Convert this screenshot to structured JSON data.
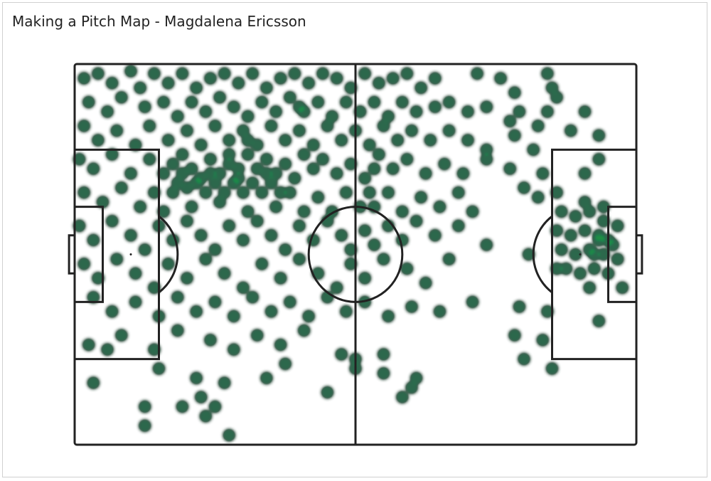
{
  "chart_data": {
    "type": "scatter",
    "title": "Making a Pitch Map - Magdalena Ericsson",
    "xlim": [
      0,
      120
    ],
    "ylim": [
      0,
      80
    ],
    "x": [
      2,
      5,
      8,
      12,
      14,
      17,
      20,
      23,
      26,
      29,
      32,
      35,
      38,
      41,
      44,
      47,
      50,
      53,
      56,
      59,
      62,
      65,
      68,
      71,
      74,
      77,
      86,
      91,
      94,
      101,
      102,
      103,
      3,
      7,
      10,
      15,
      19,
      22,
      25,
      28,
      31,
      34,
      37,
      40,
      43,
      46,
      49,
      52,
      55,
      58,
      61,
      64,
      67,
      70,
      73,
      77,
      80,
      84,
      88,
      95,
      101,
      2,
      5,
      9,
      13,
      16,
      20,
      24,
      27,
      30,
      33,
      36,
      39,
      42,
      45,
      48,
      51,
      54,
      57,
      60,
      63,
      66,
      69,
      72,
      76,
      80,
      84,
      88,
      93,
      94,
      99,
      106,
      109,
      112,
      1,
      4,
      8,
      12,
      16,
      19,
      21,
      23,
      25,
      27,
      29,
      31,
      33,
      35,
      37,
      39,
      41,
      43,
      45,
      47,
      49,
      51,
      53,
      56,
      59,
      62,
      65,
      68,
      71,
      75,
      79,
      83,
      88,
      93,
      98,
      100,
      109,
      112,
      22,
      21,
      24,
      26,
      28,
      30,
      32,
      34,
      36,
      38,
      40,
      42,
      44,
      23,
      29,
      35,
      41,
      33,
      37,
      48,
      64,
      63,
      2,
      6,
      10,
      14,
      17,
      19,
      25,
      31,
      37,
      43,
      46,
      49,
      52,
      55,
      58,
      61,
      64,
      67,
      70,
      74,
      78,
      82,
      85,
      96,
      99,
      103,
      109,
      113,
      1,
      4,
      8,
      12,
      15,
      18,
      21,
      24,
      27,
      30,
      33,
      36,
      39,
      42,
      45,
      48,
      51,
      54,
      57,
      59,
      62,
      64,
      67,
      70,
      73,
      77,
      82,
      88,
      97,
      104,
      107,
      110,
      113,
      116,
      103,
      106,
      109,
      112,
      115,
      104,
      107,
      110,
      113,
      116,
      105,
      108,
      111,
      114,
      110,
      112,
      111,
      114,
      2,
      5,
      9,
      13,
      17,
      20,
      24,
      28,
      32,
      36,
      40,
      44,
      48,
      52,
      56,
      59,
      62,
      66,
      71,
      75,
      80,
      103,
      117,
      4,
      8,
      13,
      18,
      22,
      26,
      30,
      34,
      38,
      42,
      46,
      50,
      54,
      58,
      62,
      67,
      72,
      78,
      85,
      95,
      101,
      112,
      3,
      7,
      10,
      17,
      22,
      29,
      34,
      39,
      44,
      49,
      57,
      60,
      66,
      73,
      66,
      94,
      96,
      100,
      102,
      4,
      18,
      26,
      27,
      32,
      30,
      15,
      15,
      23,
      28,
      33,
      41,
      54,
      70,
      72,
      60,
      45
    ],
    "y": [
      3,
      2,
      4,
      1.5,
      5,
      2,
      4,
      2,
      5,
      3,
      2,
      4,
      2,
      5,
      3,
      2,
      4,
      2,
      3,
      5,
      2,
      4,
      3,
      2,
      5,
      3,
      2,
      3,
      6,
      2,
      5,
      7,
      8,
      10,
      7,
      9,
      8,
      11,
      8,
      10,
      7,
      9,
      11,
      8,
      10,
      7,
      10,
      8,
      11,
      8,
      10,
      8,
      11,
      8,
      10,
      9,
      8,
      10,
      9,
      10,
      10,
      13,
      16,
      14,
      17,
      13,
      16,
      14,
      17,
      13,
      16,
      14,
      17,
      13,
      16,
      14,
      17,
      13,
      16,
      14,
      17,
      13,
      16,
      14,
      16,
      14,
      16,
      18,
      12,
      15,
      13,
      14,
      10,
      15,
      20,
      22,
      19,
      23,
      20,
      23,
      21,
      19,
      22,
      24,
      20,
      23,
      21,
      24,
      19,
      22,
      20,
      23,
      21,
      24,
      19,
      22,
      20,
      23,
      21,
      24,
      19,
      22,
      20,
      23,
      21,
      23,
      20,
      22,
      18,
      23,
      23,
      20,
      25,
      27,
      26,
      25,
      27,
      25,
      27,
      25,
      27,
      25,
      27,
      25,
      27,
      23,
      23,
      22,
      23,
      19,
      16,
      9,
      22,
      27,
      27,
      29,
      26,
      30,
      27,
      31,
      30,
      29,
      31,
      30,
      27,
      31,
      28,
      31,
      27,
      30,
      30,
      27,
      31,
      28,
      30,
      27,
      31,
      26,
      28,
      27,
      29,
      30,
      34,
      37,
      33,
      36,
      39,
      34,
      37,
      33,
      36,
      39,
      34,
      37,
      33,
      36,
      39,
      34,
      37,
      33,
      36,
      39,
      35,
      38,
      34,
      37,
      33,
      36,
      34,
      38,
      40,
      31,
      32,
      31,
      33,
      34,
      35,
      36,
      35,
      37,
      38,
      39,
      40,
      39,
      40,
      41,
      43,
      44,
      43,
      44,
      47,
      36,
      40,
      37,
      42,
      45,
      41,
      44,
      47,
      42,
      45,
      41,
      44,
      47,
      42,
      45,
      41,
      44,
      47,
      42,
      45,
      41,
      43,
      46,
      41,
      43,
      47,
      49,
      52,
      50,
      53,
      49,
      52,
      50,
      53,
      49,
      52,
      50,
      53,
      49,
      52,
      50,
      53,
      51,
      52,
      50,
      51,
      52,
      54,
      59,
      60,
      57,
      60,
      56,
      58,
      60,
      57,
      59,
      56,
      61,
      62,
      61,
      66,
      65,
      57,
      62,
      58,
      64,
      67,
      64,
      66,
      70,
      67,
      72,
      72,
      76,
      72,
      74,
      78,
      66,
      69,
      70,
      68,
      64,
      63
    ]
  }
}
